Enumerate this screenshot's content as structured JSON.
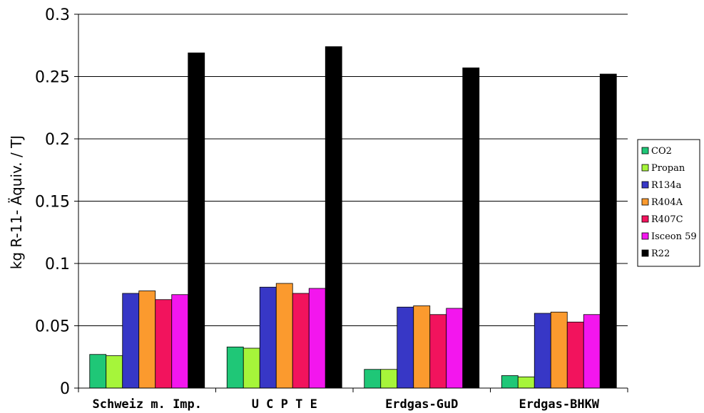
{
  "chart_data": {
    "type": "bar",
    "categories": [
      "Schweiz m. Imp.",
      "U C P T E",
      "Erdgas-GuD",
      "Erdgas-BHKW"
    ],
    "series": [
      {
        "name": "CO2",
        "color": "#1fc777",
        "values": [
          0.027,
          0.033,
          0.015,
          0.01
        ]
      },
      {
        "name": "Propan",
        "color": "#a6f53a",
        "values": [
          0.026,
          0.032,
          0.015,
          0.009
        ]
      },
      {
        "name": "R134a",
        "color": "#3737c6",
        "values": [
          0.076,
          0.081,
          0.065,
          0.06
        ]
      },
      {
        "name": "R404A",
        "color": "#fb9a2e",
        "values": [
          0.078,
          0.084,
          0.066,
          0.061
        ]
      },
      {
        "name": "R407C",
        "color": "#f2135d",
        "values": [
          0.071,
          0.076,
          0.059,
          0.053
        ]
      },
      {
        "name": "Isceon 59",
        "color": "#f316ee",
        "values": [
          0.075,
          0.08,
          0.064,
          0.059
        ]
      },
      {
        "name": "R22",
        "color": "#000000",
        "values": [
          0.269,
          0.274,
          0.257,
          0.252
        ]
      }
    ],
    "ylabel": "kg R-11- Äquiv. / TJ",
    "xlabel": "",
    "ylim": [
      0,
      0.3
    ],
    "yticks": [
      "0",
      "0.05",
      "0.1",
      "0.15",
      "0.2",
      "0.25",
      "0.3"
    ],
    "grid": true,
    "legend_position": "right"
  }
}
